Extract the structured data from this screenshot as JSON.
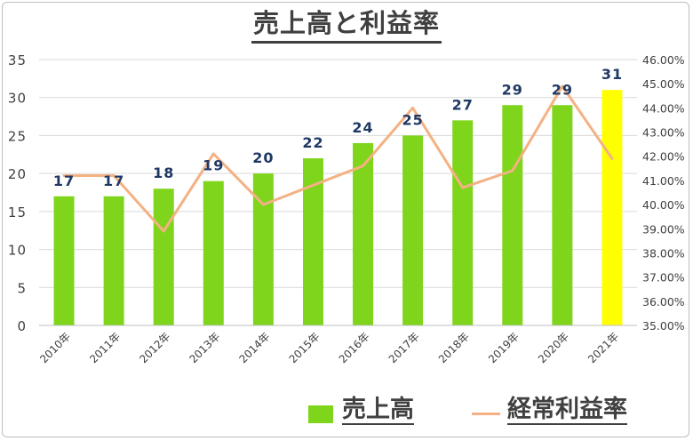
{
  "chart_data": {
    "type": "bar",
    "title": "売上高と利益率",
    "categories": [
      "2010年",
      "2011年",
      "2012年",
      "2013年",
      "2014年",
      "2015年",
      "2016年",
      "2017年",
      "2018年",
      "2019年",
      "2020年",
      "2021年"
    ],
    "series": [
      {
        "name": "売上高",
        "type": "bar",
        "axis": "left",
        "values": [
          17,
          17,
          18,
          19,
          20,
          22,
          24,
          25,
          27,
          29,
          29,
          31
        ],
        "color": "#7fd51b",
        "highlight_color": "#ffff00",
        "highlight_index": 11,
        "data_labels": [
          "17",
          "17",
          "18",
          "19",
          "20",
          "22",
          "24",
          "25",
          "27",
          "29",
          "29",
          "31"
        ]
      },
      {
        "name": "経常利益率",
        "type": "line",
        "axis": "right",
        "values": [
          41.2,
          41.2,
          38.9,
          42.1,
          40.0,
          40.8,
          41.6,
          44.0,
          40.7,
          41.4,
          44.9,
          41.9
        ],
        "color": "#f4b183"
      }
    ],
    "y_left": {
      "min": 0,
      "max": 35,
      "ticks": [
        "0",
        "5",
        "10",
        "15",
        "20",
        "25",
        "30",
        "35"
      ]
    },
    "y_right": {
      "min": 35,
      "max": 46,
      "ticks": [
        "35.00%",
        "36.00%",
        "37.00%",
        "38.00%",
        "39.00%",
        "40.00%",
        "41.00%",
        "42.00%",
        "43.00%",
        "44.00%",
        "45.00%",
        "46.00%"
      ]
    },
    "grid": true,
    "legend_position": "bottom",
    "colors": {
      "bar": "#7fd51b",
      "bar_highlight": "#ffff00",
      "line": "#f4b183",
      "grid": "#d9d9d9",
      "label": "#1f3864",
      "text": "#404040"
    }
  },
  "legend": {
    "bar_label": "売上高",
    "line_label": "経常利益率"
  }
}
